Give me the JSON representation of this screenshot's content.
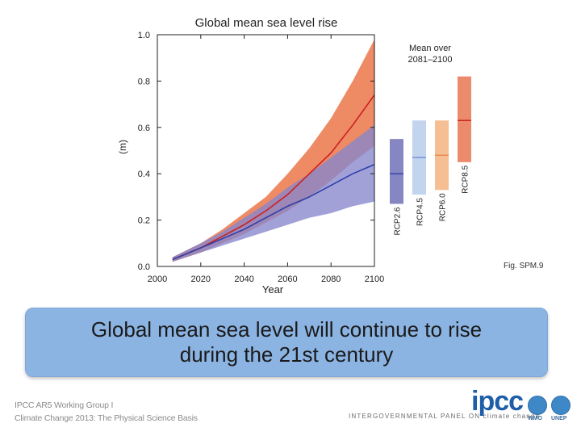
{
  "chart_data": {
    "type": "line",
    "title": "Global mean sea level rise",
    "ylabel": "(m)",
    "xlabel": "Year",
    "xlim": [
      2000,
      2100
    ],
    "ylim": [
      0.0,
      1.0
    ],
    "x_ticks": [
      "2000",
      "2020",
      "2040",
      "2060",
      "2080",
      "2100"
    ],
    "y_ticks": [
      "0.0",
      "0.2",
      "0.4",
      "0.6",
      "0.8",
      "1.0"
    ],
    "series": [
      {
        "name": "RCP8.5",
        "color": "#cc1f1f",
        "band_color": "#ee8a64",
        "x": [
          2007,
          2020,
          2030,
          2040,
          2050,
          2060,
          2070,
          2080,
          2090,
          2100
        ],
        "mean": [
          0.03,
          0.08,
          0.13,
          0.18,
          0.24,
          0.31,
          0.4,
          0.49,
          0.61,
          0.74
        ],
        "lower": [
          0.02,
          0.06,
          0.1,
          0.14,
          0.19,
          0.24,
          0.3,
          0.37,
          0.45,
          0.52
        ],
        "upper": [
          0.04,
          0.1,
          0.16,
          0.23,
          0.3,
          0.4,
          0.51,
          0.64,
          0.8,
          0.98
        ]
      },
      {
        "name": "RCP2.6",
        "color": "#2f3fa8",
        "band_color": "#8686cd",
        "x": [
          2007,
          2020,
          2030,
          2040,
          2050,
          2060,
          2070,
          2080,
          2090,
          2100
        ],
        "mean": [
          0.03,
          0.08,
          0.12,
          0.16,
          0.21,
          0.26,
          0.3,
          0.35,
          0.4,
          0.44
        ],
        "lower": [
          0.02,
          0.06,
          0.09,
          0.12,
          0.15,
          0.18,
          0.21,
          0.23,
          0.26,
          0.28
        ],
        "upper": [
          0.04,
          0.1,
          0.15,
          0.21,
          0.27,
          0.34,
          0.4,
          0.47,
          0.54,
          0.61
        ]
      }
    ],
    "legend_title": [
      "Mean over",
      "2081–2100"
    ],
    "bars": [
      {
        "name": "RCP2.6",
        "low": 0.27,
        "high": 0.55,
        "mean": 0.4,
        "color": "#8686c2",
        "line_color": "#2f3fa8"
      },
      {
        "name": "RCP4.5",
        "low": 0.31,
        "high": 0.63,
        "mean": 0.47,
        "color": "#c3d4ef",
        "line_color": "#6b8fd3"
      },
      {
        "name": "RCP6.0",
        "low": 0.33,
        "high": 0.63,
        "mean": 0.48,
        "color": "#f6be93",
        "line_color": "#ea8a50"
      },
      {
        "name": "RCP8.5",
        "low": 0.45,
        "high": 0.82,
        "mean": 0.63,
        "color": "#ec8a6c",
        "line_color": "#c61b1b"
      }
    ]
  },
  "fig_ref": "Fig. SPM.9",
  "caption": "Global mean sea level will continue to rise during the 21st century",
  "footer": {
    "line1": "IPCC AR5 Working Group I",
    "line2": "Climate Change 2013: The Physical Science Basis",
    "ipcc_logo": "ipcc",
    "ipcc_subtitle": "INTERGOVERNMENTAL PANEL ON climate change",
    "wmo": "WMO",
    "unep": "UNEP"
  }
}
